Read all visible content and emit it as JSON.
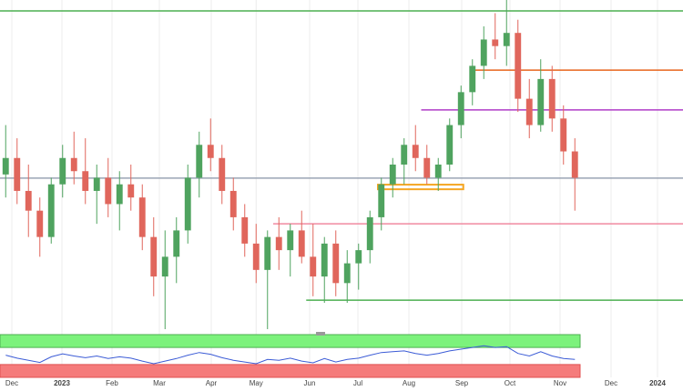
{
  "chart_data": {
    "type": "candlestick",
    "xlim": [
      0,
      60
    ],
    "ylim": [
      0,
      100
    ],
    "xticks": [
      {
        "value": 1.04,
        "label": "Dec"
      },
      {
        "value": 5.44,
        "label": "2023"
      },
      {
        "value": 9.84,
        "label": "Feb"
      },
      {
        "value": 14,
        "label": "Mar"
      },
      {
        "value": 18.56,
        "label": "Apr"
      },
      {
        "value": 22.5,
        "label": "May"
      },
      {
        "value": 27.2,
        "label": "Jun"
      },
      {
        "value": 31.44,
        "label": "Jul"
      },
      {
        "value": 35.92,
        "label": "Aug"
      },
      {
        "value": 40.56,
        "label": "Sep"
      },
      {
        "value": 44.8,
        "label": "Oct"
      },
      {
        "value": 49.2,
        "label": "Nov"
      },
      {
        "value": 53.68,
        "label": "Dec"
      },
      {
        "value": 57.76,
        "label": "2024"
      }
    ],
    "grid": true,
    "up_color": "#4fa35f",
    "down_color": "#e0665c",
    "open": [
      47,
      52,
      42,
      36,
      28,
      44,
      52,
      48,
      42,
      46,
      38,
      44,
      40,
      28,
      16,
      22,
      30,
      46,
      56,
      52,
      42,
      34,
      26,
      18,
      28,
      24,
      30,
      22,
      16,
      26,
      14,
      20,
      24,
      34,
      44,
      50,
      56,
      52,
      46,
      50,
      62,
      72,
      80,
      88,
      86,
      90,
      70,
      62,
      76,
      64,
      54
    ],
    "high": [
      62,
      58,
      50,
      40,
      46,
      56,
      60,
      58,
      50,
      52,
      48,
      50,
      44,
      34,
      30,
      34,
      50,
      60,
      64,
      56,
      46,
      38,
      32,
      30,
      34,
      32,
      36,
      32,
      28,
      30,
      24,
      26,
      36,
      46,
      52,
      58,
      62,
      56,
      52,
      64,
      74,
      82,
      92,
      96,
      100,
      94,
      76,
      82,
      80,
      68,
      58
    ],
    "low": [
      40,
      38,
      28,
      22,
      26,
      40,
      44,
      38,
      32,
      34,
      30,
      36,
      24,
      10,
      0,
      14,
      26,
      40,
      48,
      38,
      30,
      22,
      14,
      0,
      18,
      16,
      20,
      10,
      8,
      10,
      8,
      12,
      20,
      30,
      40,
      44,
      48,
      44,
      42,
      48,
      58,
      68,
      76,
      82,
      80,
      66,
      58,
      60,
      60,
      50,
      36
    ],
    "close": [
      52,
      42,
      36,
      28,
      44,
      52,
      48,
      42,
      46,
      38,
      44,
      40,
      28,
      16,
      22,
      30,
      46,
      56,
      52,
      42,
      34,
      26,
      18,
      28,
      24,
      30,
      22,
      16,
      26,
      14,
      20,
      24,
      34,
      44,
      50,
      56,
      52,
      46,
      50,
      62,
      72,
      80,
      88,
      86,
      90,
      70,
      62,
      76,
      64,
      54,
      46
    ],
    "levels": [
      {
        "value": 96.7,
        "start": 0,
        "color": "#4caf50"
      },
      {
        "value": 78.7,
        "start": 41.6,
        "color": "#e8641c"
      },
      {
        "value": 66.6,
        "start": 37,
        "color": "#b03cc8"
      },
      {
        "value": 45.9,
        "start": 0,
        "color": "#9aa4b4"
      },
      {
        "value": 32,
        "start": 24,
        "color": "#f08aa0"
      },
      {
        "value": 8.8,
        "start": 26.9,
        "color": "#4caf50"
      }
    ],
    "zone": {
      "x": [
        33.2,
        40.7
      ],
      "y": [
        42.5,
        43.9
      ],
      "color": "#f5a623"
    },
    "indicator": {
      "ylim": [
        0,
        100
      ],
      "upper_band": [
        70,
        100
      ],
      "upper_color": "#7cf27c",
      "lower_band": [
        0,
        30
      ],
      "lower_color": "#f57b7b",
      "color": "#3b5bd6",
      "values": [
        52,
        45,
        40,
        35,
        48,
        55,
        50,
        46,
        50,
        44,
        48,
        45,
        38,
        32,
        38,
        44,
        52,
        58,
        54,
        46,
        40,
        36,
        32,
        42,
        40,
        45,
        38,
        34,
        44,
        36,
        42,
        45,
        52,
        58,
        60,
        62,
        56,
        52,
        56,
        62,
        66,
        70,
        74,
        70,
        72,
        56,
        50,
        60,
        50,
        44,
        42
      ]
    }
  }
}
